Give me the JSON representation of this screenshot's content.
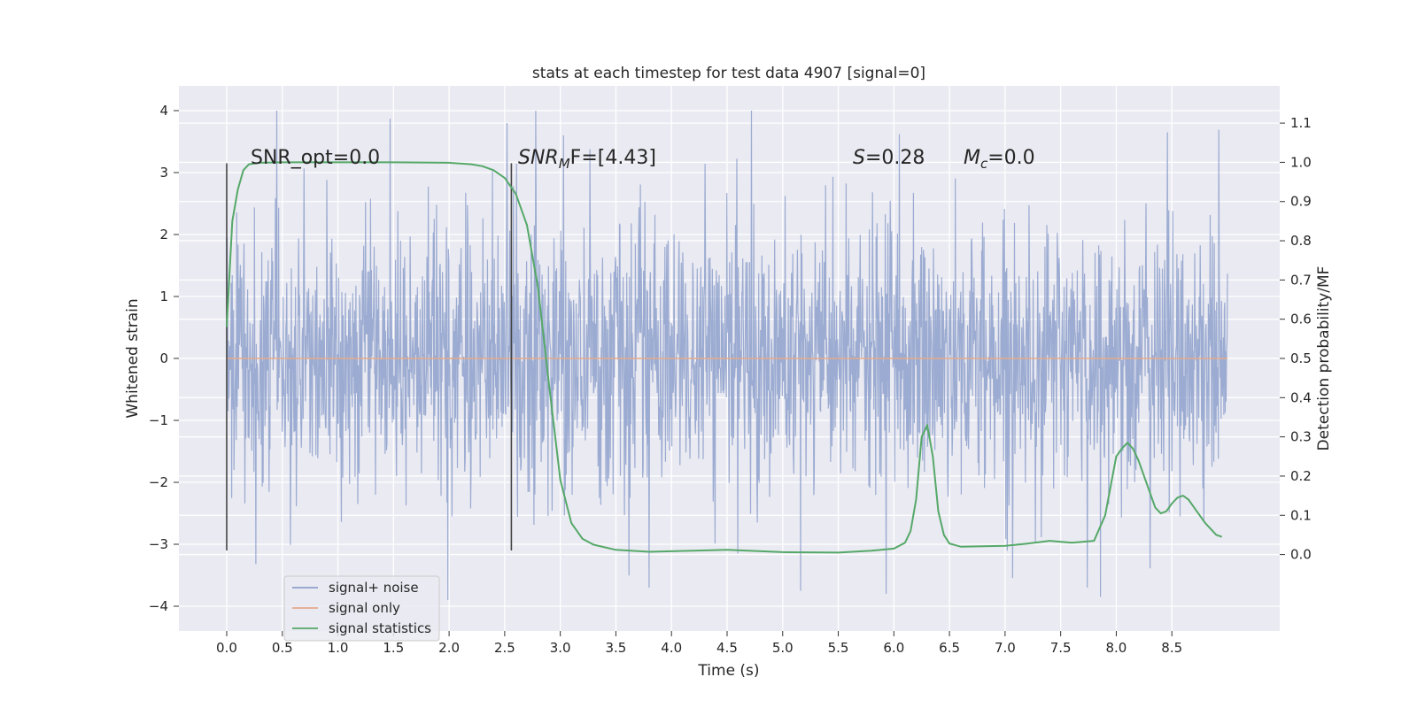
{
  "chart_data": {
    "type": "line",
    "title": "stats at each timestep for test data 4907 [signal=0]",
    "xlabel": "Time (s)",
    "ylabel_left": "Whitened strain",
    "ylabel_right": "Detection probability/MF",
    "xlim": [
      -0.43,
      9.47
    ],
    "ylim_left": [
      -4.4,
      4.4
    ],
    "ylim_right": [
      -0.195,
      1.195
    ],
    "x_ticks": [
      "0.0",
      "0.5",
      "1.0",
      "1.5",
      "2.0",
      "2.5",
      "3.0",
      "3.5",
      "4.0",
      "4.5",
      "5.0",
      "5.5",
      "6.0",
      "6.5",
      "7.0",
      "7.5",
      "8.0",
      "8.5"
    ],
    "y_ticks_left": [
      "4",
      "3",
      "2",
      "1",
      "0",
      "−1",
      "−2",
      "−3",
      "−4"
    ],
    "y_ticks_right": [
      "1.1",
      "1.0",
      "0.9",
      "0.8",
      "0.7",
      "0.6",
      "0.5",
      "0.4",
      "0.3",
      "0.2",
      "0.1",
      "0.0"
    ],
    "annotations": {
      "snr_opt": "SNR_opt=0.0",
      "snr_mf_sym": "SNR",
      "snr_mf_sub": "M",
      "snr_mf_rest": "F=[4.43]",
      "s_sym": "S",
      "s_val": "=0.28",
      "mc_sym": "M",
      "mc_sub": "c",
      "mc_val": "=0.0"
    },
    "markers": {
      "t": [
        0.0,
        2.56
      ],
      "y_range": [
        -3.1,
        3.15
      ]
    },
    "grid": true,
    "legend_position": "lower-left",
    "series": [
      {
        "name": "signal+ noise",
        "color": "#8da0cb",
        "axis": "left",
        "t_range": [
          0.0,
          9.0
        ],
        "envelope_max": 4.0,
        "envelope_min": -3.9,
        "notable_spikes": [
          {
            "t": 0.45,
            "v": 4.02
          },
          {
            "t": 1.47,
            "v": 3.87
          },
          {
            "t": 2.52,
            "v": 3.8
          },
          {
            "t": 4.72,
            "v": 4.01
          },
          {
            "t": 0.26,
            "v": -3.32
          },
          {
            "t": 1.99,
            "v": -3.95
          },
          {
            "t": 3.8,
            "v": -3.7
          },
          {
            "t": 5.16,
            "v": -3.75
          },
          {
            "t": 5.93,
            "v": -3.8
          },
          {
            "t": 7.74,
            "v": -3.7
          },
          {
            "t": 7.86,
            "v": -3.85
          },
          {
            "t": 8.46,
            "v": 3.65
          },
          {
            "t": 3.03,
            "v": 3.6
          },
          {
            "t": 6.05,
            "v": 3.62
          }
        ]
      },
      {
        "name": "signal only",
        "color": "#e5a98a",
        "axis": "left",
        "t": [
          0.0,
          9.0
        ],
        "values": [
          0.0,
          0.0
        ]
      },
      {
        "name": "signal statistics",
        "color": "#55a868",
        "axis": "right",
        "t": [
          0.0,
          0.05,
          0.1,
          0.15,
          0.2,
          0.3,
          0.5,
          1.0,
          1.5,
          2.0,
          2.2,
          2.3,
          2.4,
          2.5,
          2.6,
          2.7,
          2.8,
          2.9,
          3.0,
          3.1,
          3.2,
          3.3,
          3.5,
          3.8,
          4.2,
          4.5,
          5.0,
          5.5,
          5.8,
          6.0,
          6.1,
          6.15,
          6.2,
          6.25,
          6.3,
          6.35,
          6.4,
          6.45,
          6.5,
          6.6,
          7.0,
          7.2,
          7.4,
          7.6,
          7.8,
          7.9,
          8.0,
          8.05,
          8.1,
          8.15,
          8.2,
          8.25,
          8.3,
          8.35,
          8.4,
          8.45,
          8.5,
          8.55,
          8.6,
          8.65,
          8.7,
          8.8,
          8.9,
          8.95
        ],
        "values": [
          0.58,
          0.85,
          0.93,
          0.98,
          0.995,
          0.999,
          1.0,
          1.0,
          1.0,
          0.999,
          0.995,
          0.99,
          0.98,
          0.96,
          0.92,
          0.84,
          0.68,
          0.43,
          0.19,
          0.08,
          0.04,
          0.025,
          0.012,
          0.007,
          0.01,
          0.012,
          0.006,
          0.005,
          0.01,
          0.015,
          0.03,
          0.06,
          0.14,
          0.3,
          0.33,
          0.25,
          0.11,
          0.05,
          0.028,
          0.02,
          0.022,
          0.028,
          0.035,
          0.03,
          0.035,
          0.1,
          0.25,
          0.27,
          0.285,
          0.27,
          0.24,
          0.2,
          0.16,
          0.12,
          0.105,
          0.11,
          0.13,
          0.145,
          0.15,
          0.14,
          0.12,
          0.08,
          0.05,
          0.045
        ]
      }
    ]
  }
}
